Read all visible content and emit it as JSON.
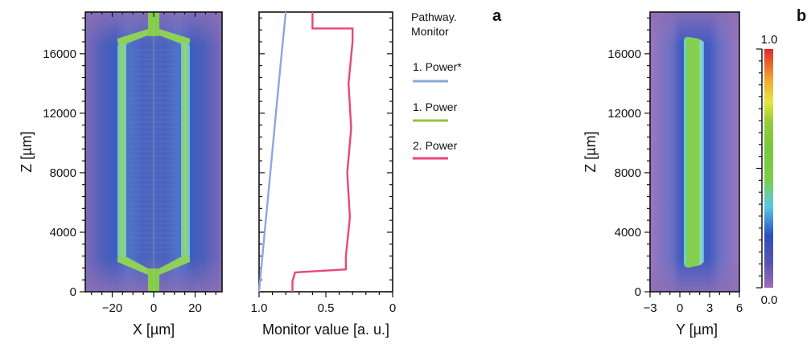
{
  "panel_labels": {
    "a": "a",
    "b": "b"
  },
  "legend": {
    "title_line1": "Pathway.",
    "title_line2": "Monitor",
    "items": [
      {
        "label": "1. Power*",
        "color": "#8aa8dc"
      },
      {
        "label": "1. Power",
        "color": "#8cc63f"
      },
      {
        "label": "2. Power",
        "color": "#e8477a"
      }
    ]
  },
  "colorbar": {
    "max_label": "1.0",
    "min_label": "0.0"
  },
  "chart_data": [
    {
      "type": "heatmap",
      "xlabel": "X [µm]",
      "ylabel": "Z [µm]",
      "xticks": [
        "−20",
        "0",
        "20"
      ],
      "xtick_values": [
        -20,
        0,
        20
      ],
      "yticks": [
        "0",
        "4000",
        "8000",
        "12000",
        "16000"
      ],
      "ytick_values": [
        0,
        4000,
        8000,
        12000,
        16000
      ],
      "xlim": [
        -33,
        33
      ],
      "ylim": [
        0,
        18800
      ],
      "colormap": [
        "#9b6fb3",
        "#3b56b8",
        "#67d8e0",
        "#7ccf4e",
        "#e6e63c",
        "#e33a2a"
      ]
    },
    {
      "type": "line",
      "xlabel": "Monitor value [a. u.]",
      "xticks": [
        "1.0",
        "0.5",
        "0"
      ],
      "xtick_values": [
        1.0,
        0.5,
        0
      ],
      "xlim": [
        1.0,
        0
      ],
      "ylim": [
        0,
        18800
      ],
      "series": [
        {
          "name": "1. Power*",
          "color": "#8aa8dc",
          "x": [
            1.0,
            0.96,
            0.92,
            0.88,
            0.84,
            0.8
          ],
          "y": [
            0,
            3800,
            7600,
            11400,
            15200,
            18800
          ]
        },
        {
          "name": "2. Power",
          "color": "#e8477a",
          "x": [
            0.75,
            0.75,
            0.73,
            0.35,
            0.35,
            0.32,
            0.34,
            0.31,
            0.33,
            0.3,
            0.3,
            0.6,
            0.6
          ],
          "y": [
            0,
            700,
            1300,
            1500,
            2400,
            5000,
            8000,
            11000,
            14000,
            16800,
            17700,
            17700,
            18800
          ]
        }
      ]
    },
    {
      "type": "heatmap",
      "xlabel": "Y [µm]",
      "ylabel": "Z [µm]",
      "xticks": [
        "−3",
        "0",
        "3",
        "6"
      ],
      "xtick_values": [
        -3,
        0,
        3,
        6
      ],
      "yticks": [
        "0",
        "4000",
        "8000",
        "12000",
        "16000"
      ],
      "ytick_values": [
        0,
        4000,
        8000,
        12000,
        16000
      ],
      "xlim": [
        -3,
        6
      ],
      "ylim": [
        0,
        18800
      ],
      "colorbar_range": [
        0.0,
        1.0
      ]
    }
  ]
}
